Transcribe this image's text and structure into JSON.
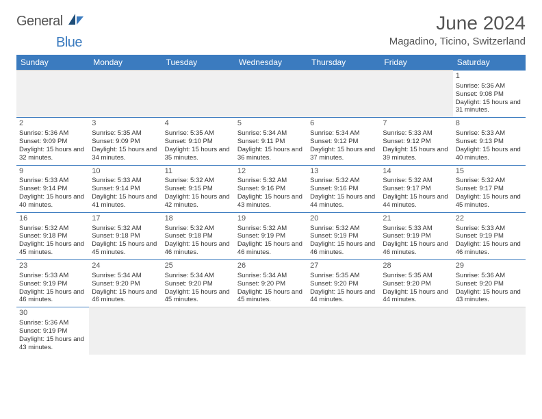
{
  "logo": {
    "text_general": "General",
    "text_blue": "Blue"
  },
  "title": "June 2024",
  "location": "Magadino, Ticino, Switzerland",
  "day_names": [
    "Sunday",
    "Monday",
    "Tuesday",
    "Wednesday",
    "Thursday",
    "Friday",
    "Saturday"
  ],
  "colors": {
    "header_bg": "#3b7bbf",
    "header_text": "#ffffff",
    "border": "#3b7bbf",
    "empty_bg": "#f0f0f0",
    "text": "#333333",
    "title_text": "#555555"
  },
  "first_weekday_index": 6,
  "days": [
    {
      "n": 1,
      "sunrise": "5:36 AM",
      "sunset": "9:08 PM",
      "daylight": "15 hours and 31 minutes."
    },
    {
      "n": 2,
      "sunrise": "5:36 AM",
      "sunset": "9:09 PM",
      "daylight": "15 hours and 32 minutes."
    },
    {
      "n": 3,
      "sunrise": "5:35 AM",
      "sunset": "9:09 PM",
      "daylight": "15 hours and 34 minutes."
    },
    {
      "n": 4,
      "sunrise": "5:35 AM",
      "sunset": "9:10 PM",
      "daylight": "15 hours and 35 minutes."
    },
    {
      "n": 5,
      "sunrise": "5:34 AM",
      "sunset": "9:11 PM",
      "daylight": "15 hours and 36 minutes."
    },
    {
      "n": 6,
      "sunrise": "5:34 AM",
      "sunset": "9:12 PM",
      "daylight": "15 hours and 37 minutes."
    },
    {
      "n": 7,
      "sunrise": "5:33 AM",
      "sunset": "9:12 PM",
      "daylight": "15 hours and 39 minutes."
    },
    {
      "n": 8,
      "sunrise": "5:33 AM",
      "sunset": "9:13 PM",
      "daylight": "15 hours and 40 minutes."
    },
    {
      "n": 9,
      "sunrise": "5:33 AM",
      "sunset": "9:14 PM",
      "daylight": "15 hours and 40 minutes."
    },
    {
      "n": 10,
      "sunrise": "5:33 AM",
      "sunset": "9:14 PM",
      "daylight": "15 hours and 41 minutes."
    },
    {
      "n": 11,
      "sunrise": "5:32 AM",
      "sunset": "9:15 PM",
      "daylight": "15 hours and 42 minutes."
    },
    {
      "n": 12,
      "sunrise": "5:32 AM",
      "sunset": "9:16 PM",
      "daylight": "15 hours and 43 minutes."
    },
    {
      "n": 13,
      "sunrise": "5:32 AM",
      "sunset": "9:16 PM",
      "daylight": "15 hours and 44 minutes."
    },
    {
      "n": 14,
      "sunrise": "5:32 AM",
      "sunset": "9:17 PM",
      "daylight": "15 hours and 44 minutes."
    },
    {
      "n": 15,
      "sunrise": "5:32 AM",
      "sunset": "9:17 PM",
      "daylight": "15 hours and 45 minutes."
    },
    {
      "n": 16,
      "sunrise": "5:32 AM",
      "sunset": "9:18 PM",
      "daylight": "15 hours and 45 minutes."
    },
    {
      "n": 17,
      "sunrise": "5:32 AM",
      "sunset": "9:18 PM",
      "daylight": "15 hours and 45 minutes."
    },
    {
      "n": 18,
      "sunrise": "5:32 AM",
      "sunset": "9:18 PM",
      "daylight": "15 hours and 46 minutes."
    },
    {
      "n": 19,
      "sunrise": "5:32 AM",
      "sunset": "9:19 PM",
      "daylight": "15 hours and 46 minutes."
    },
    {
      "n": 20,
      "sunrise": "5:32 AM",
      "sunset": "9:19 PM",
      "daylight": "15 hours and 46 minutes."
    },
    {
      "n": 21,
      "sunrise": "5:33 AM",
      "sunset": "9:19 PM",
      "daylight": "15 hours and 46 minutes."
    },
    {
      "n": 22,
      "sunrise": "5:33 AM",
      "sunset": "9:19 PM",
      "daylight": "15 hours and 46 minutes."
    },
    {
      "n": 23,
      "sunrise": "5:33 AM",
      "sunset": "9:19 PM",
      "daylight": "15 hours and 46 minutes."
    },
    {
      "n": 24,
      "sunrise": "5:34 AM",
      "sunset": "9:20 PM",
      "daylight": "15 hours and 46 minutes."
    },
    {
      "n": 25,
      "sunrise": "5:34 AM",
      "sunset": "9:20 PM",
      "daylight": "15 hours and 45 minutes."
    },
    {
      "n": 26,
      "sunrise": "5:34 AM",
      "sunset": "9:20 PM",
      "daylight": "15 hours and 45 minutes."
    },
    {
      "n": 27,
      "sunrise": "5:35 AM",
      "sunset": "9:20 PM",
      "daylight": "15 hours and 44 minutes."
    },
    {
      "n": 28,
      "sunrise": "5:35 AM",
      "sunset": "9:20 PM",
      "daylight": "15 hours and 44 minutes."
    },
    {
      "n": 29,
      "sunrise": "5:36 AM",
      "sunset": "9:20 PM",
      "daylight": "15 hours and 43 minutes."
    },
    {
      "n": 30,
      "sunrise": "5:36 AM",
      "sunset": "9:19 PM",
      "daylight": "15 hours and 43 minutes."
    }
  ],
  "labels": {
    "sunrise": "Sunrise:",
    "sunset": "Sunset:",
    "daylight": "Daylight:"
  }
}
